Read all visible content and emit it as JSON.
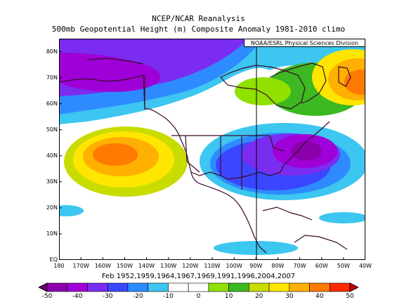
{
  "header": {
    "title": "NCEP/NCAR Reanalysis",
    "subtitle": "500mb Geopotential Height (m) Composite Anomaly 1981-2010 climo",
    "credit": "NOAA/ESRL Physical Sciences Division"
  },
  "map": {
    "lat_labels": [
      "80N",
      "70N",
      "60N",
      "50N",
      "40N",
      "30N",
      "20N",
      "10N",
      "EQ"
    ],
    "lon_labels": [
      "180",
      "170W",
      "160W",
      "150W",
      "140W",
      "130W",
      "120W",
      "110W",
      "100W",
      "90W",
      "80W",
      "70W",
      "60W",
      "50W",
      "40W"
    ],
    "extent": {
      "lon_min": -180,
      "lon_max": -40,
      "lat_min": 0,
      "lat_max": 85
    },
    "caption": "Feb 1952,1959,1964,1967,1969,1991,1996,2004,2007",
    "features": {
      "ridge_pacific": {
        "lon": -155,
        "lat": 38,
        "anomaly_m": 40
      },
      "ridge_north_atlantic": {
        "lon": -45,
        "lat": 68,
        "anomaly_m": 40
      },
      "trough_eastern_us": {
        "lon": -60,
        "lat": 42,
        "anomaly_m": -40
      },
      "trough_alaska_canada": {
        "lon": -140,
        "lat": 72,
        "anomaly_m": -30
      }
    }
  },
  "colorbar": {
    "ticks": [
      "-50",
      "-40",
      "-30",
      "-20",
      "-10",
      "0",
      "10",
      "20",
      "30",
      "40",
      "50"
    ],
    "colors": [
      "#6a006a",
      "#8a00aa",
      "#a000d8",
      "#7a2cf0",
      "#3a46ff",
      "#2e8bff",
      "#3cc6f0",
      "#ffffff",
      "#ffffff",
      "#90e000",
      "#3cb820",
      "#c8dc00",
      "#ffe600",
      "#ffb000",
      "#ff7a00",
      "#ff2a00",
      "#c80000"
    ]
  }
}
